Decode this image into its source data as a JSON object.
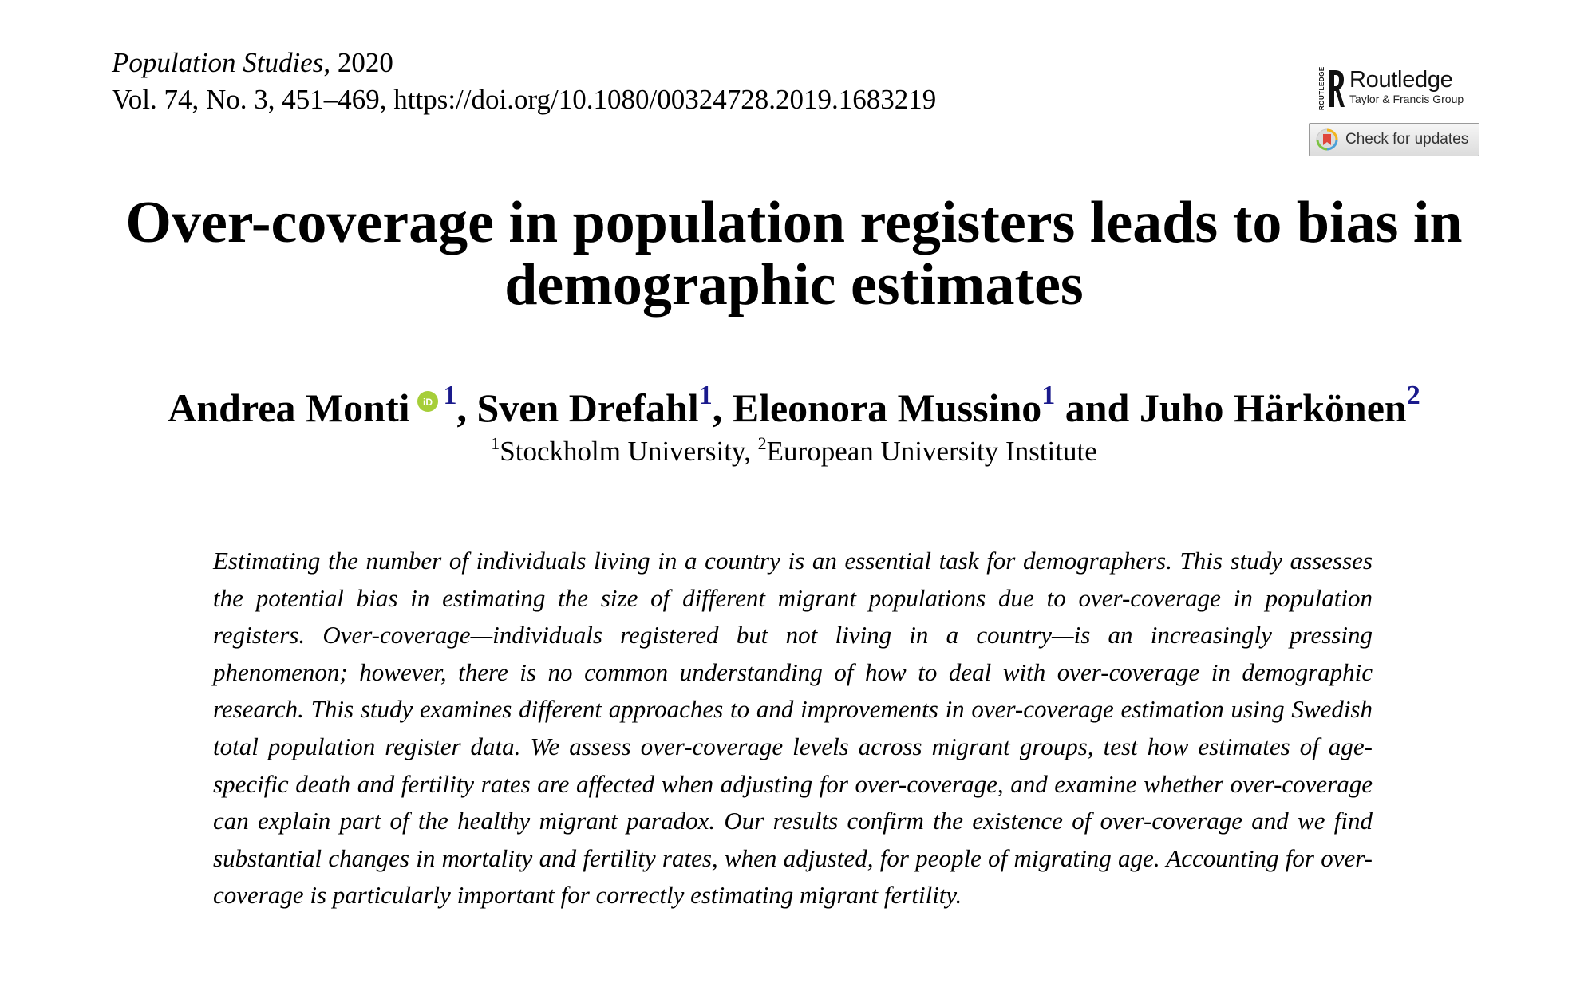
{
  "journal": {
    "name": "Population Studies",
    "year_sep": ", ",
    "year": "2020",
    "citation": "Vol. 74, No. 3, 451–469, https://doi.org/10.1080/00324728.2019.1683219"
  },
  "publisher": {
    "vertical_text": "ROUTLEDGE",
    "name": "Routledge",
    "group": "Taylor & Francis Group"
  },
  "check_updates": {
    "label": "Check for updates"
  },
  "title": "Over-coverage in population registers leads to bias in demographic estimates",
  "authors": [
    {
      "name": "Andrea Monti",
      "affil": "1",
      "sep": ", "
    },
    {
      "name": "Sven Drefahl",
      "affil": "1",
      "sep": ", "
    },
    {
      "name": "Eleonora Mussino",
      "affil": "1",
      "sep": " and "
    },
    {
      "name": "Juho Härkönen",
      "affil": "2",
      "sep": ""
    }
  ],
  "orcid_label": "iD",
  "affiliations": [
    {
      "num": "1",
      "name": "Stockholm University",
      "sep": ", "
    },
    {
      "num": "2",
      "name": "European University Institute",
      "sep": ""
    }
  ],
  "abstract": "Estimating the number of individuals living in a country is an essential task for demographers. This study assesses the potential bias in estimating the size of different migrant populations due to over-coverage in population registers. Over-coverage—individuals registered but not living in a country—is an increasingly pressing phenomenon; however, there is no common understanding of how to deal with over-coverage in demographic research. This study examines different approaches to and improvements in over-coverage estimation using Swedish total population register data. We assess over-coverage levels across migrant groups, test how estimates of age-specific death and fertility rates are affected when adjusting for over-coverage, and examine whether over-coverage can explain part of the healthy migrant paradox. Our results confirm the existence of over-coverage and we find substantial changes in mortality and fertility rates, when adjusted, for people of migrating age. Accounting for over-coverage is particularly important for correctly estimating migrant fertility.",
  "colors": {
    "superscript": "#1a1a8c",
    "orcid": "#a6ce39"
  }
}
